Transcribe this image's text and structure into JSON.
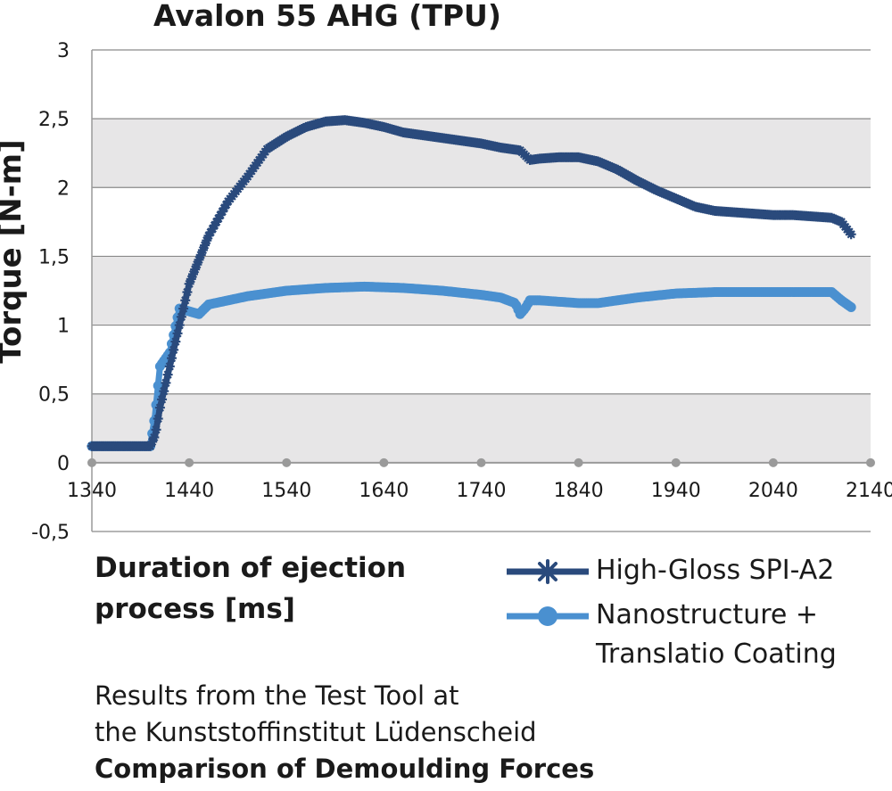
{
  "chart_data": {
    "type": "line",
    "title": "Avalon 55 AHG (TPU)",
    "xlabel": "Duration of ejection process [ms]",
    "ylabel": "Torque [N-m]",
    "xlim": [
      1340,
      2140
    ],
    "ylim": [
      -0.5,
      3
    ],
    "x_ticks": [
      "1340",
      "1440",
      "1540",
      "1640",
      "1740",
      "1840",
      "1940",
      "2040",
      "2140"
    ],
    "y_ticks": [
      "3",
      "2,5",
      "2",
      "1,5",
      "1",
      "0,5",
      "0",
      "-0,5"
    ],
    "grid": true,
    "legend_position": "bottom-right",
    "series": [
      {
        "name": "High-Gloss SPI-A2",
        "color": "#2a4a7c",
        "marker": "star",
        "x": [
          1340,
          1400,
          1405,
          1410,
          1420,
          1440,
          1460,
          1480,
          1500,
          1520,
          1540,
          1560,
          1580,
          1600,
          1620,
          1640,
          1660,
          1680,
          1700,
          1720,
          1740,
          1760,
          1780,
          1790,
          1800,
          1820,
          1840,
          1860,
          1880,
          1900,
          1920,
          1940,
          1960,
          1980,
          2000,
          2020,
          2040,
          2060,
          2080,
          2100,
          2110,
          2120
        ],
        "y": [
          0.12,
          0.12,
          0.2,
          0.4,
          0.7,
          1.3,
          1.65,
          1.9,
          2.08,
          2.28,
          2.37,
          2.44,
          2.48,
          2.49,
          2.47,
          2.44,
          2.4,
          2.38,
          2.36,
          2.34,
          2.32,
          2.29,
          2.27,
          2.2,
          2.21,
          2.22,
          2.22,
          2.19,
          2.13,
          2.05,
          1.98,
          1.92,
          1.86,
          1.83,
          1.82,
          1.81,
          1.8,
          1.8,
          1.79,
          1.78,
          1.75,
          1.66
        ]
      },
      {
        "name": "Nanostructure + Translatio Coating",
        "color": "#4a90d0",
        "marker": "circle",
        "x": [
          1340,
          1400,
          1405,
          1410,
          1420,
          1430,
          1440,
          1450,
          1460,
          1480,
          1500,
          1540,
          1580,
          1620,
          1660,
          1700,
          1740,
          1760,
          1775,
          1780,
          1785,
          1790,
          1800,
          1820,
          1840,
          1860,
          1880,
          1900,
          1940,
          1980,
          2020,
          2060,
          2100,
          2110,
          2120
        ],
        "y": [
          0.12,
          0.12,
          0.35,
          0.7,
          0.8,
          1.12,
          1.1,
          1.08,
          1.15,
          1.18,
          1.21,
          1.25,
          1.27,
          1.28,
          1.27,
          1.25,
          1.22,
          1.2,
          1.16,
          1.08,
          1.12,
          1.18,
          1.18,
          1.17,
          1.16,
          1.16,
          1.18,
          1.2,
          1.23,
          1.24,
          1.24,
          1.24,
          1.24,
          1.18,
          1.13
        ]
      }
    ]
  },
  "footnote": {
    "line1": "Results from the Test Tool at",
    "line2": "the Kunststoffinstitut Lüdenscheid",
    "line3": "Comparison of Demoulding Forces"
  }
}
